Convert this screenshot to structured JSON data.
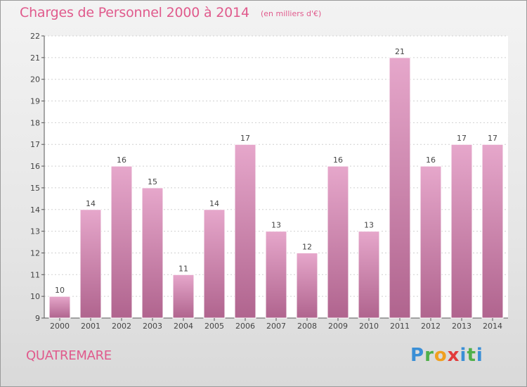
{
  "header": {
    "title": "Charges de Personnel 2000 à 2014",
    "subtitle": "(en milliers d'€)"
  },
  "footer": {
    "commune": "QUATREMARE",
    "brand": "Proxiti"
  },
  "colors": {
    "bar_fill_top": "#e6a7cb",
    "bar_fill_bottom": "#b0648e",
    "title": "#e05a8c",
    "axis": "#555555"
  },
  "chart_data": {
    "type": "bar",
    "title": "Charges de Personnel 2000 à 2014",
    "subtitle": "(en milliers d'€)",
    "xlabel": "",
    "ylabel": "",
    "categories": [
      "2000",
      "2001",
      "2002",
      "2003",
      "2004",
      "2005",
      "2006",
      "2007",
      "2008",
      "2009",
      "2010",
      "2011",
      "2012",
      "2013",
      "2014"
    ],
    "values": [
      10,
      14,
      16,
      15,
      11,
      14,
      17,
      13,
      12,
      16,
      13,
      21,
      16,
      17,
      17
    ],
    "ylim": [
      9,
      22
    ],
    "yticks": [
      9,
      10,
      11,
      12,
      13,
      14,
      15,
      16,
      17,
      18,
      19,
      20,
      21,
      22
    ],
    "grid": true,
    "data_labels": true
  }
}
